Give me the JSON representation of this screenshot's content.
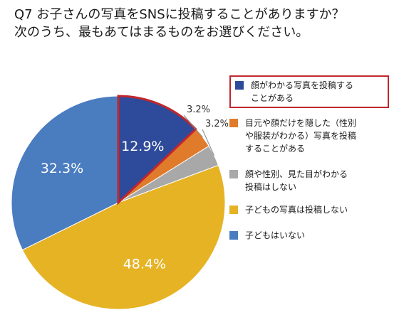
{
  "title": {
    "line1": "Q7 お子さんの写真をSNSに投稿することがありますか？",
    "line2": "次のうち、最もあてはまるものをお選びください。"
  },
  "highlight": {
    "color": "#c1272d",
    "category_index": 0
  },
  "chart_data": {
    "type": "pie",
    "start_angle_deg": 0,
    "direction": "clockwise",
    "slices": [
      {
        "label": "顔がわかる写真を投稿する\nことがある",
        "value": 12.9,
        "value_label": "12.9%",
        "color": "#2e4a9a",
        "label_position": "inside"
      },
      {
        "label": "目元や顔だけを隠した（性別\nや服装がわかる）写真を投稿\nすることがある",
        "value": 3.2,
        "value_label": "3.2%",
        "color": "#e07b2c",
        "label_position": "outside"
      },
      {
        "label": "顔や性別、見た目がわかる\n投稿はしない",
        "value": 3.2,
        "value_label": "3.2%",
        "color": "#a8a8a8",
        "label_position": "outside"
      },
      {
        "label": "子どもの写真は投稿しない",
        "value": 48.4,
        "value_label": "48.4%",
        "color": "#e6b325",
        "label_position": "inside"
      },
      {
        "label": "子どもはいない",
        "value": 32.3,
        "value_label": "32.3%",
        "color": "#4a7cc0",
        "label_position": "inside"
      }
    ],
    "legend_position": "right"
  }
}
